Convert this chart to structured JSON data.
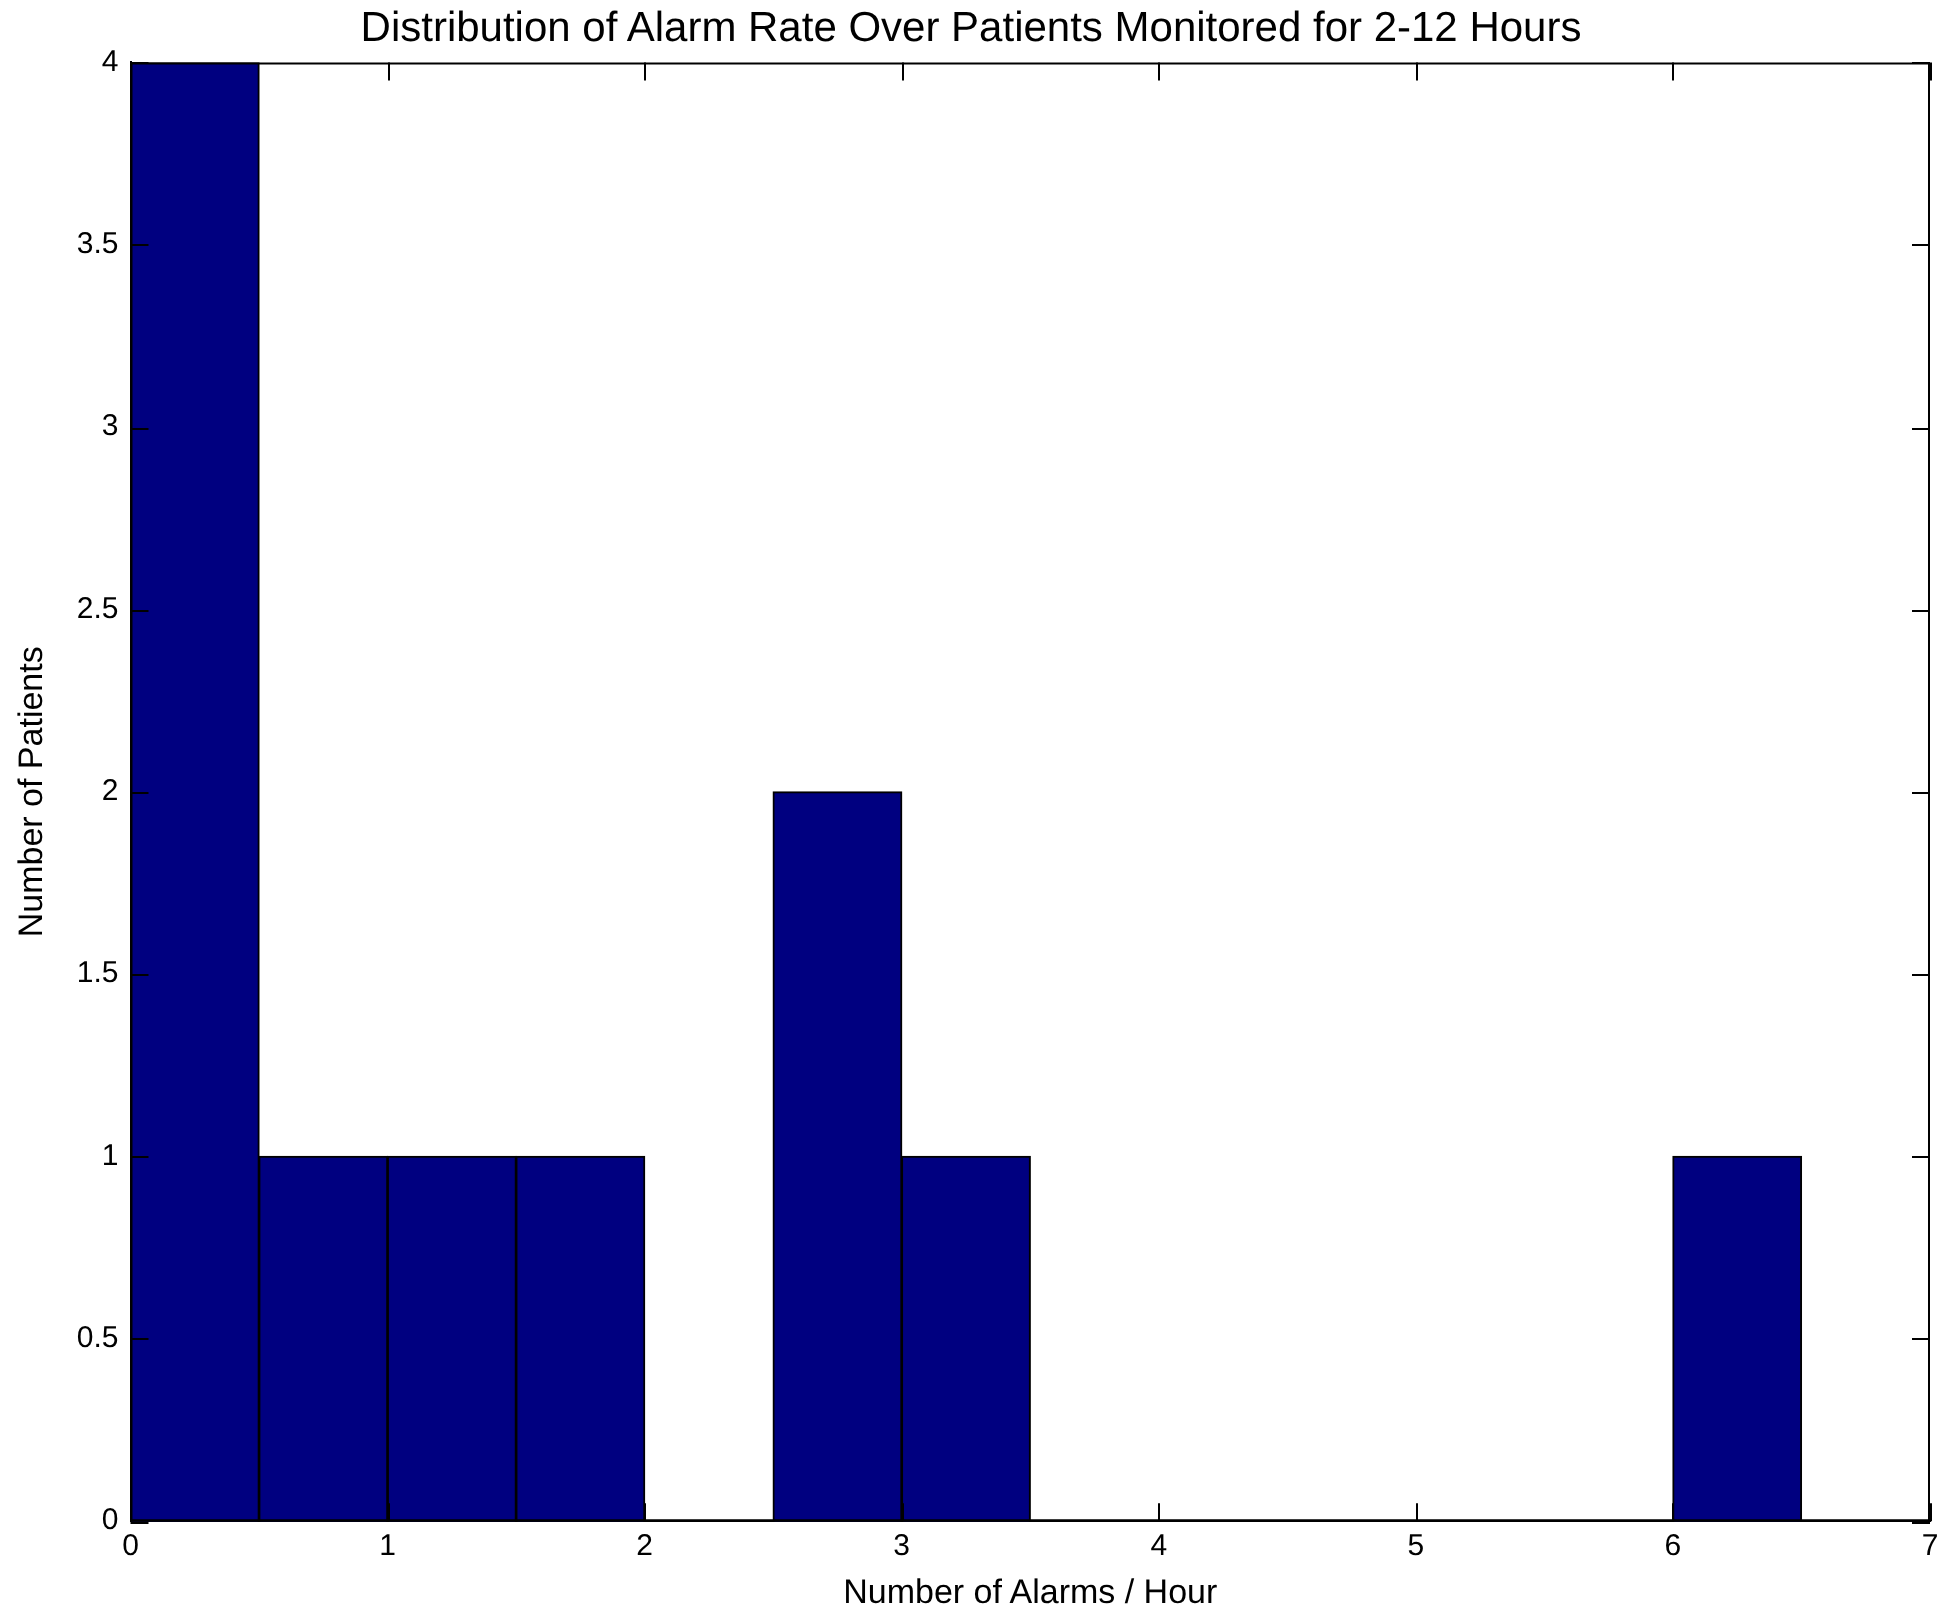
{
  "chart_data": {
    "type": "histogram",
    "title": "Distribution of Alarm Rate Over Patients Monitored for 2-12 Hours",
    "xlabel": "Number of Alarms / Hour",
    "ylabel": "Number of Patients",
    "bins": [
      0,
      0.5,
      1,
      1.5,
      2,
      2.5,
      3,
      3.5,
      4,
      4.5,
      5,
      5.5,
      6,
      6.5
    ],
    "values": [
      4,
      1,
      1,
      1,
      0,
      2,
      1,
      0,
      0,
      0,
      0,
      0,
      1
    ],
    "color": "#000080",
    "xlim": [
      0,
      7
    ],
    "xticks": [
      0,
      1,
      2,
      3,
      4,
      5,
      6,
      7
    ],
    "ylim": [
      0,
      4
    ],
    "yticks": [
      0,
      0.5,
      1,
      1.5,
      2,
      2.5,
      3,
      3.5,
      4
    ],
    "grid": false,
    "legend": false
  }
}
